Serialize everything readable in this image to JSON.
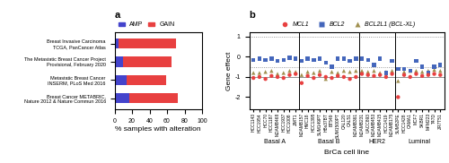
{
  "chart_data": [
    {
      "type": "bar",
      "title": "a",
      "orientation": "horizontal",
      "stacked": true,
      "categories": [
        "Breast Cancer METABRIC,\nNature 2012 & Nature Commun 2016",
        "Metastatic Breast Cancer\nINSERM, PLoS Med 2016",
        "The Metastatic Breast Cancer Project\nProvisional, February 2020",
        "Breast Invasive Carcinoma\nTCGA, PanCancer Atlas"
      ],
      "series": [
        {
          "name": "AMP",
          "color": "#4444cc",
          "values": [
            17,
            14,
            10,
            5
          ]
        },
        {
          "name": "GAIN",
          "color": "#e84040",
          "values": [
            55,
            45,
            55,
            65
          ]
        }
      ],
      "xlabel": "% samples with alteration",
      "xlim": [
        0,
        100
      ],
      "xticks": [
        0,
        20,
        40,
        60,
        80,
        100
      ],
      "legend": "lower left"
    },
    {
      "type": "scatter",
      "title": "b",
      "categories": [
        "HCC1143",
        "HCC1954",
        "HCC70",
        "HCC1187",
        "MDAMB468",
        "HCC1937",
        "HCC1008",
        "JIMT1",
        "MDAMB157",
        "HMC18",
        "HCC1395",
        "SUM149PT",
        "HBs37BT",
        "BT549",
        "SUM1500PT",
        "CAL120",
        "CAL51",
        "MDAMB361",
        "MDAMB231",
        "UACC893",
        "MDAMB453",
        "MDAMB415",
        "HCC1419",
        "MDAMB175",
        "SUM52PE",
        "HCC1428",
        "CAMA1",
        "MCF7",
        "SKBR1",
        "MFM223",
        "T47D",
        "ZR7T51"
      ],
      "series": [
        {
          "name": "MCL1",
          "color": "#e84040",
          "marker": "o",
          "values": [
            -1.05,
            -1.0,
            -1.1,
            -0.95,
            -1.0,
            -1.05,
            -0.9,
            -0.85,
            -1.3,
            -0.95,
            -1.05,
            -0.9,
            -1.0,
            -1.05,
            -0.95,
            -1.0,
            -1.1,
            -1.0,
            -0.85,
            -0.9,
            -0.95,
            -0.9,
            -1.0,
            -0.85,
            -2.0,
            -0.9,
            -1.0,
            -0.85,
            -0.95,
            -0.9,
            -0.85,
            -0.9
          ]
        },
        {
          "name": "BCL2",
          "color": "#4466bb",
          "marker": "s",
          "values": [
            -0.15,
            -0.1,
            -0.15,
            -0.1,
            -0.2,
            -0.15,
            -0.05,
            -0.1,
            -0.2,
            -0.1,
            -0.15,
            -0.1,
            -0.3,
            -0.5,
            -0.1,
            -0.1,
            -0.2,
            -0.1,
            -0.1,
            -0.15,
            -0.4,
            -0.1,
            -0.8,
            -0.2,
            -0.6,
            -0.6,
            -0.7,
            -0.2,
            -0.5,
            -0.8,
            -0.5,
            -0.4
          ]
        },
        {
          "name": "BCL2L1 (BCL-XL)",
          "color": "#a09050",
          "marker": "^",
          "values": [
            -0.8,
            -0.8,
            -0.75,
            -0.7,
            -0.85,
            -0.8,
            -0.7,
            -0.75,
            -0.9,
            -0.75,
            -0.8,
            -0.7,
            -1.1,
            -0.75,
            -0.8,
            -0.7,
            -0.75,
            -0.7,
            -0.7,
            -0.75,
            -0.7,
            -0.8,
            -0.75,
            -0.7,
            -1.2,
            -0.75,
            -0.7,
            -0.7,
            -0.75,
            -0.7,
            -0.65,
            -0.7
          ]
        }
      ],
      "xlabel": "BrCa cell line",
      "ylabel": "Gene effect",
      "ylim": [
        -2.6,
        1.2
      ],
      "yticks": [
        -2,
        -1,
        0,
        1
      ],
      "legend": "lower center",
      "groups": [
        {
          "name": "Basal A",
          "start": 0,
          "end": 8
        },
        {
          "name": "Basal B",
          "start": 8,
          "end": 18
        },
        {
          "name": "HER2",
          "start": 18,
          "end": 24
        },
        {
          "name": "Luminal",
          "start": 24,
          "end": 32
        }
      ],
      "reference_lines": [
        {
          "value": 1.0,
          "line_style": "dotted"
        },
        {
          "value": -0.5,
          "line_style": "dotted"
        },
        {
          "value": -1.0,
          "line_style": "solid"
        }
      ]
    }
  ]
}
